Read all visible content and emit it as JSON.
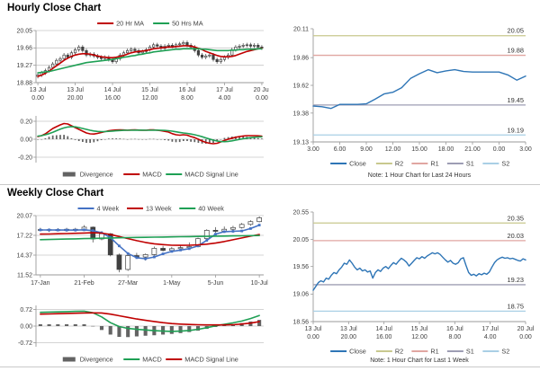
{
  "page": {
    "hourly_title": "Hourly Close Chart",
    "weekly_title": "Weekly Close Chart"
  },
  "colors": {
    "red": "#C00000",
    "green": "#1FA055",
    "close_blue": "#2E75B6",
    "ma4_blue": "#4472C4",
    "r2_olive": "#C8C88E",
    "r1_rose": "#E0A6A1",
    "s1_gray": "#9D9DB4",
    "s2_lightblue": "#A9CFE5",
    "divergence_gray": "#636363",
    "grid": "#C6C6C6",
    "axis": "#9A9A9A",
    "candle": "#404040",
    "text": "#404040"
  },
  "chart_data": [
    {
      "id": "hourly_close",
      "type": "candlestick",
      "title": "Hourly Close Chart",
      "y_ticks": [
        "20.05",
        "19.66",
        "19.27",
        "18.88"
      ],
      "ylim": [
        18.88,
        20.05
      ],
      "x_labels": [
        [
          "13 Jul",
          "0.00"
        ],
        [
          "13 Jul",
          "20.00"
        ],
        [
          "14 Jul",
          "16.00"
        ],
        [
          "15 Jul",
          "12.00"
        ],
        [
          "16 Jul",
          "8.00"
        ],
        [
          "17 Jul",
          "4.00"
        ],
        [
          "20 Jul",
          "0.00"
        ]
      ],
      "closes": [
        19.05,
        19.1,
        19.15,
        19.22,
        19.3,
        19.38,
        19.42,
        19.5,
        19.45,
        19.55,
        19.62,
        19.68,
        19.6,
        19.5,
        19.52,
        19.48,
        19.45,
        19.42,
        19.45,
        19.4,
        19.35,
        19.42,
        19.5,
        19.55,
        19.6,
        19.63,
        19.6,
        19.55,
        19.58,
        19.62,
        19.68,
        19.73,
        19.7,
        19.65,
        19.7,
        19.72,
        19.7,
        19.73,
        19.75,
        19.78,
        19.72,
        19.68,
        19.6,
        19.5,
        19.45,
        19.48,
        19.5,
        19.4,
        19.35,
        19.4,
        19.45,
        19.5,
        19.62,
        19.68,
        19.7,
        19.72,
        19.73,
        19.7,
        19.72,
        19.68,
        19.66
      ],
      "series": [
        {
          "name": "20 Hr MA",
          "color_key": "red",
          "values": [
            19.02,
            19.05,
            19.09,
            19.14,
            19.2,
            19.26,
            19.32,
            19.38,
            19.43,
            19.47,
            19.5,
            19.52,
            19.53,
            19.53,
            19.52,
            19.5,
            19.48,
            19.46,
            19.45,
            19.44,
            19.44,
            19.45,
            19.47,
            19.49,
            19.52,
            19.55,
            19.57,
            19.58,
            19.59,
            19.6,
            19.62,
            19.64,
            19.65,
            19.66,
            19.67,
            19.68,
            19.68,
            19.69,
            19.7,
            19.71,
            19.71,
            19.7,
            19.68,
            19.65,
            19.62,
            19.58,
            19.55,
            19.52,
            19.49,
            19.47,
            19.46,
            19.46,
            19.47,
            19.49,
            19.52,
            19.55,
            19.58,
            19.6,
            19.62,
            19.64,
            19.65
          ]
        },
        {
          "name": "50 Hrs MA",
          "color_key": "green",
          "values": [
            19.1,
            19.11,
            19.12,
            19.13,
            19.15,
            19.17,
            19.19,
            19.21,
            19.23,
            19.25,
            19.27,
            19.29,
            19.31,
            19.33,
            19.34,
            19.35,
            19.36,
            19.37,
            19.38,
            19.39,
            19.4,
            19.42,
            19.43,
            19.45,
            19.46,
            19.48,
            19.49,
            19.51,
            19.52,
            19.54,
            19.55,
            19.57,
            19.58,
            19.59,
            19.6,
            19.61,
            19.62,
            19.63,
            19.63,
            19.64,
            19.64,
            19.64,
            19.64,
            19.64,
            19.63,
            19.63,
            19.62,
            19.61,
            19.6,
            19.6,
            19.6,
            19.6,
            19.61,
            19.61,
            19.62,
            19.62,
            19.63,
            19.63,
            19.63,
            19.64,
            19.64
          ]
        }
      ]
    },
    {
      "id": "hourly_macd",
      "type": "macd",
      "y_ticks": [
        "0.20",
        "0.00",
        "-0.20"
      ],
      "ylim": [
        -0.26,
        0.26
      ],
      "legend": [
        "Divergence",
        "MACD",
        "MACD Signal Line"
      ],
      "macd_color_key": "red",
      "signal_color_key": "green",
      "macd": [
        0.03,
        0.04,
        0.06,
        0.09,
        0.12,
        0.14,
        0.16,
        0.175,
        0.17,
        0.15,
        0.13,
        0.11,
        0.09,
        0.07,
        0.06,
        0.058,
        0.065,
        0.075,
        0.085,
        0.095,
        0.1,
        0.103,
        0.105,
        0.103,
        0.1,
        0.103,
        0.105,
        0.102,
        0.1,
        0.1,
        0.104,
        0.105,
        0.1,
        0.095,
        0.088,
        0.08,
        0.062,
        0.05,
        0.045,
        0.05,
        0.045,
        0.03,
        0.018,
        0.0,
        -0.02,
        -0.035,
        -0.045,
        -0.05,
        -0.045,
        -0.03,
        -0.012,
        0.0,
        0.012,
        0.022,
        0.03,
        0.036,
        0.04,
        0.04,
        0.04,
        0.038,
        0.035
      ],
      "signal": [
        0.035,
        0.04,
        0.05,
        0.062,
        0.078,
        0.095,
        0.112,
        0.126,
        0.136,
        0.14,
        0.138,
        0.13,
        0.12,
        0.11,
        0.1,
        0.092,
        0.087,
        0.085,
        0.086,
        0.088,
        0.091,
        0.094,
        0.097,
        0.099,
        0.1,
        0.1,
        0.101,
        0.101,
        0.101,
        0.1,
        0.1,
        0.101,
        0.101,
        0.1,
        0.098,
        0.095,
        0.09,
        0.083,
        0.076,
        0.07,
        0.065,
        0.058,
        0.05,
        0.04,
        0.028,
        0.015,
        0.002,
        -0.01,
        -0.02,
        -0.026,
        -0.027,
        -0.024,
        -0.018,
        -0.01,
        -0.002,
        0.005,
        0.012,
        0.018,
        0.022,
        0.025,
        0.027
      ]
    },
    {
      "id": "hourly_pivot",
      "type": "line",
      "y_ticks": [
        "20.11",
        "19.86",
        "19.62",
        "19.38",
        "19.13"
      ],
      "ylim": [
        19.13,
        20.11
      ],
      "x_labels": [
        "3.00",
        "6.00",
        "9.00",
        "12.00",
        "15.00",
        "18.00",
        "21.00",
        "0.00",
        "3.00"
      ],
      "close": [
        19.44,
        19.435,
        19.42,
        19.455,
        19.455,
        19.455,
        19.46,
        19.5,
        19.545,
        19.56,
        19.6,
        19.68,
        19.72,
        19.755,
        19.73,
        19.745,
        19.755,
        19.74,
        19.735,
        19.735,
        19.735,
        19.735,
        19.71,
        19.665,
        19.7
      ],
      "pivots": [
        {
          "name": "R2",
          "label": "20.05",
          "value": 20.05,
          "color_key": "r2_olive"
        },
        {
          "name": "R1",
          "label": "19.88",
          "value": 19.88,
          "color_key": "r1_rose"
        },
        {
          "name": "S1",
          "label": "19.45",
          "value": 19.45,
          "color_key": "s1_gray"
        },
        {
          "name": "S2",
          "label": "19.19",
          "value": 19.19,
          "color_key": "s2_lightblue"
        }
      ],
      "legend": [
        "Close",
        "R2",
        "R1",
        "S1",
        "S2"
      ],
      "note": "Note: 1 Hour Chart for Last 24 Hours"
    },
    {
      "id": "weekly_close",
      "type": "candlestick",
      "title": "Weekly Close Chart",
      "y_ticks": [
        "20.07",
        "17.22",
        "14.37",
        "11.52"
      ],
      "ylim": [
        11.52,
        20.07
      ],
      "x_labels": [
        "17-Jan",
        "21-Feb",
        "27-Mar",
        "1-May",
        "5-Jun",
        "10-Jul"
      ],
      "candles": [
        [
          18.05,
          18.3,
          17.85,
          17.95
        ],
        [
          17.95,
          18.2,
          17.7,
          18.05
        ],
        [
          18.05,
          18.25,
          17.85,
          17.9
        ],
        [
          17.9,
          18.3,
          17.75,
          18.1
        ],
        [
          18.1,
          18.3,
          17.8,
          17.95
        ],
        [
          17.95,
          18.7,
          17.85,
          18.4
        ],
        [
          18.4,
          18.5,
          16.2,
          16.7
        ],
        [
          16.7,
          17.8,
          16.5,
          17.45
        ],
        [
          17.45,
          17.55,
          14.2,
          14.4
        ],
        [
          14.4,
          14.6,
          11.9,
          12.3
        ],
        [
          12.3,
          14.6,
          12.1,
          14.3
        ],
        [
          14.3,
          14.7,
          13.9,
          14.1
        ],
        [
          14.1,
          14.6,
          13.6,
          14.45
        ],
        [
          14.45,
          15.6,
          14.3,
          15.35
        ],
        [
          15.35,
          15.7,
          14.9,
          15.05
        ],
        [
          15.05,
          15.55,
          14.8,
          15.3
        ],
        [
          15.3,
          15.75,
          15.1,
          15.45
        ],
        [
          15.45,
          16.2,
          15.3,
          15.6
        ],
        [
          15.6,
          16.9,
          15.5,
          16.75
        ],
        [
          16.75,
          18.1,
          16.6,
          17.95
        ],
        [
          17.95,
          18.4,
          17.6,
          17.8
        ],
        [
          17.8,
          18.5,
          17.65,
          18.1
        ],
        [
          18.1,
          18.6,
          17.9,
          18.35
        ],
        [
          18.35,
          19.0,
          18.2,
          18.8
        ],
        [
          18.8,
          19.4,
          18.6,
          19.2
        ],
        [
          19.2,
          19.95,
          19.1,
          19.75
        ]
      ],
      "series": [
        {
          "name": "4 Week",
          "color_key": "ma4_blue",
          "markers": true,
          "values": [
            18.0,
            18.0,
            17.98,
            17.98,
            17.97,
            18.02,
            17.9,
            17.6,
            16.9,
            15.7,
            14.6,
            14.0,
            13.85,
            14.1,
            14.55,
            14.9,
            15.1,
            15.3,
            15.7,
            16.5,
            17.4,
            17.75,
            17.8,
            17.85,
            18.2,
            18.7
          ]
        },
        {
          "name": "13 Week",
          "color_key": "red",
          "values": [
            17.4,
            17.42,
            17.45,
            17.48,
            17.52,
            17.56,
            17.6,
            17.55,
            17.35,
            17.05,
            16.75,
            16.45,
            16.2,
            16.0,
            15.88,
            15.8,
            15.78,
            15.8,
            15.85,
            15.95,
            16.1,
            16.32,
            16.58,
            16.85,
            17.1,
            17.35
          ]
        },
        {
          "name": "40 Week",
          "color_key": "green",
          "values": [
            16.6,
            16.63,
            16.66,
            16.69,
            16.72,
            16.75,
            16.78,
            16.81,
            16.84,
            16.87,
            16.9,
            16.92,
            16.94,
            16.96,
            16.98,
            17.0,
            17.02,
            17.04,
            17.06,
            17.08,
            17.1,
            17.12,
            17.14,
            17.16,
            17.18,
            17.2
          ]
        }
      ]
    },
    {
      "id": "weekly_macd",
      "type": "macd",
      "y_ticks": [
        "0.72",
        "0.00",
        "-0.72"
      ],
      "ylim": [
        -0.9,
        0.9
      ],
      "legend": [
        "Divergence",
        "MACD",
        "MACD Signal Line"
      ],
      "macd_color_key": "green",
      "signal_color_key": "red",
      "macd": [
        0.6,
        0.61,
        0.62,
        0.63,
        0.64,
        0.65,
        0.58,
        0.4,
        0.15,
        -0.02,
        -0.1,
        -0.14,
        -0.17,
        -0.2,
        -0.22,
        -0.23,
        -0.22,
        -0.19,
        -0.14,
        -0.07,
        0.01,
        0.08,
        0.14,
        0.22,
        0.33,
        0.46
      ],
      "signal": [
        0.52,
        0.53,
        0.54,
        0.55,
        0.56,
        0.57,
        0.575,
        0.57,
        0.52,
        0.45,
        0.38,
        0.31,
        0.25,
        0.2,
        0.15,
        0.11,
        0.085,
        0.07,
        0.06,
        0.05,
        0.05,
        0.05,
        0.06,
        0.09,
        0.13,
        0.19
      ]
    },
    {
      "id": "weekly_pivot",
      "type": "line",
      "y_ticks": [
        "20.55",
        "20.05",
        "19.56",
        "19.06",
        "18.56"
      ],
      "ylim": [
        18.56,
        20.55
      ],
      "x_labels": [
        [
          "13 Jul",
          "0.00"
        ],
        [
          "13 Jul",
          "20.00"
        ],
        [
          "14 Jul",
          "16.00"
        ],
        [
          "15 Jul",
          "12.00"
        ],
        [
          "16 Jul",
          "8.00"
        ],
        [
          "17 Jul",
          "4.00"
        ],
        [
          "20 Jul",
          "0.00"
        ]
      ],
      "close": [
        19.13,
        19.2,
        19.27,
        19.3,
        19.28,
        19.35,
        19.33,
        19.4,
        19.45,
        19.43,
        19.5,
        19.55,
        19.62,
        19.6,
        19.68,
        19.62,
        19.55,
        19.5,
        19.53,
        19.48,
        19.5,
        19.46,
        19.48,
        19.35,
        19.45,
        19.5,
        19.47,
        19.53,
        19.56,
        19.52,
        19.58,
        19.63,
        19.6,
        19.66,
        19.71,
        19.68,
        19.64,
        19.57,
        19.62,
        19.67,
        19.72,
        19.7,
        19.74,
        19.71,
        19.75,
        19.78,
        19.81,
        19.79,
        19.81,
        19.78,
        19.73,
        19.68,
        19.64,
        19.67,
        19.62,
        19.6,
        19.63,
        19.7,
        19.72,
        19.58,
        19.45,
        19.4,
        19.42,
        19.39,
        19.43,
        19.41,
        19.44,
        19.42,
        19.46,
        19.55,
        19.63,
        19.68,
        19.71,
        19.73,
        19.71,
        19.72,
        19.7,
        19.71,
        19.69,
        19.67,
        19.66,
        19.7,
        19.68
      ],
      "pivots": [
        {
          "name": "R2",
          "label": "20.35",
          "value": 20.35,
          "color_key": "r2_olive"
        },
        {
          "name": "R1",
          "label": "20.03",
          "value": 20.03,
          "color_key": "r1_rose"
        },
        {
          "name": "S1",
          "label": "19.23",
          "value": 19.23,
          "color_key": "s1_gray"
        },
        {
          "name": "S2",
          "label": "18.75",
          "value": 18.75,
          "color_key": "s2_lightblue"
        }
      ],
      "legend": [
        "Close",
        "R2",
        "R1",
        "S1",
        "S2"
      ],
      "note": "Note: 1 Hour Chart for Last 1 Week"
    }
  ]
}
